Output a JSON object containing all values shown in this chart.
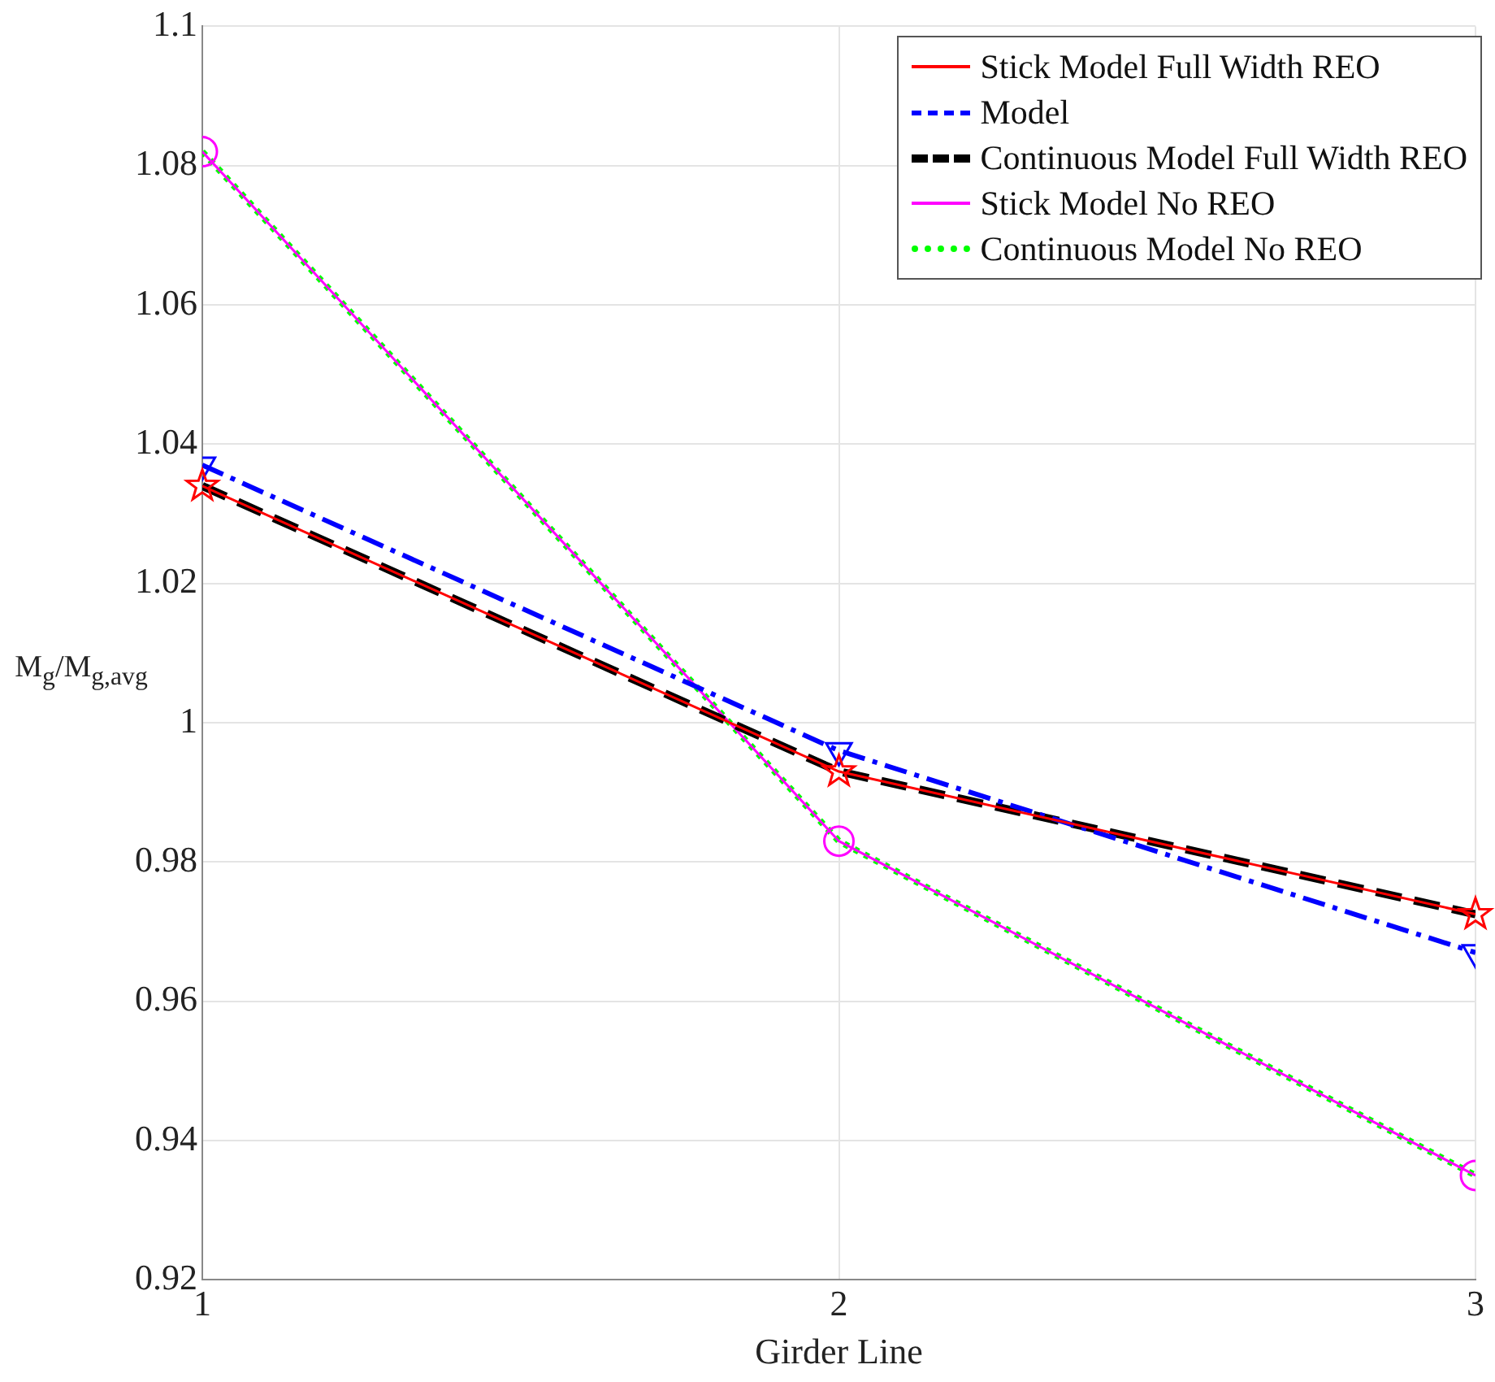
{
  "chart_data": {
    "type": "line",
    "xlabel": "Girder Line",
    "ylabel": "M$_{g}$/M$_{g,avg}$",
    "x": [
      1,
      2,
      3
    ],
    "xlim": [
      1,
      3
    ],
    "xticks": [
      1,
      2,
      3
    ],
    "ylim": [
      0.92,
      1.1
    ],
    "yticks": [
      0.92,
      0.94,
      0.96,
      0.98,
      1,
      1.02,
      1.04,
      1.06,
      1.08,
      1.1
    ],
    "grid": true,
    "legend": "top right",
    "series": [
      {
        "name": "Stick Model Full Width REO",
        "color": "#ff0000",
        "values": [
          1.034,
          0.993,
          0.9725
        ],
        "marker": "star",
        "line_style": "solid"
      },
      {
        "name": "Model",
        "color": "#0000ff",
        "values": [
          1.037,
          0.996,
          0.967
        ],
        "marker": "triangle",
        "line_style": "dashdot"
      },
      {
        "name": "Continuous Model Full Width REO",
        "color": "#000000",
        "values": [
          1.034,
          0.993,
          0.9725
        ],
        "marker": "none",
        "line_style": "dashed"
      },
      {
        "name": "Stick Model No REO",
        "color": "#ff00ff",
        "values": [
          1.082,
          0.983,
          0.935
        ],
        "marker": "circle",
        "line_style": "solid"
      },
      {
        "name": "Continuous Model No REO",
        "color": "#00ff00",
        "values": [
          1.082,
          0.983,
          0.935
        ],
        "marker": "none",
        "line_style": "dotted"
      }
    ]
  }
}
